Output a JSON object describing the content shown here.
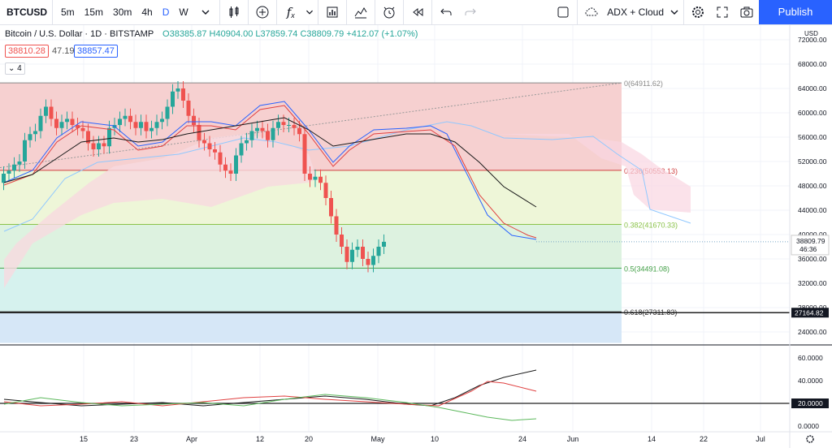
{
  "toolbar": {
    "symbol": "BTCUSD",
    "intervals": [
      "5m",
      "15m",
      "30m",
      "4h",
      "D",
      "W"
    ],
    "active_interval": "D",
    "layout_name": "ADX + Cloud",
    "publish_label": "Publish"
  },
  "legend": {
    "title": "Bitcoin / U.S. Dollar · 1D · BITSTAMP",
    "ohlc": "O38385.87 H40904.00 L37859.74 C38809.79 +412.07 (+1.07%)",
    "bid": "38810.28",
    "spread": "47.19",
    "ask": "38857.47",
    "collapsed_count": "4"
  },
  "price_scale": {
    "currency": "USD",
    "ticks": [
      "72000.00",
      "68000.00",
      "64000.00",
      "60000.00",
      "56000.00",
      "52000.00",
      "48000.00",
      "44000.00",
      "40000.00",
      "36000.00",
      "32000.00",
      "28000.00",
      "24000.00"
    ],
    "last_price": "38809.79",
    "countdown": "46:36",
    "line_price": "27164.82"
  },
  "adx_scale": {
    "ticks": [
      "60.0000",
      "40.0000",
      "0.0000"
    ],
    "line_value": "20.0000"
  },
  "time_axis": [
    "15",
    "23",
    "Apr",
    "12",
    "20",
    "May",
    "10",
    "24",
    "Jun",
    "14",
    "22",
    "Jul"
  ],
  "fib_labels": [
    "0(64911.62)",
    "0.236(50553.13)",
    "0.382(41670.33)",
    "0.5(34491.08)",
    "0.618(27311.83)"
  ],
  "colors": {
    "up": "#26a69a",
    "down": "#ef5350",
    "accent": "#2962ff",
    "tenkan": "#2962ff",
    "kijun": "#e04040",
    "slow": "#1a1a1a",
    "span_a": "#90c8ff"
  }
}
